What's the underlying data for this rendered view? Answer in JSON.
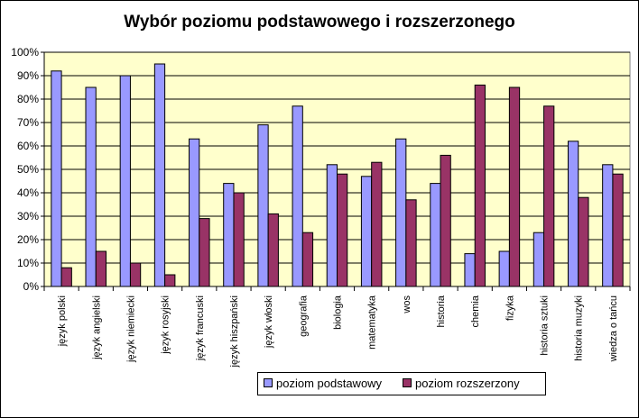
{
  "chart_data": {
    "type": "bar",
    "title": "Wybór poziomu podstawowego i rozszerzonego",
    "xlabel": "",
    "ylabel": "",
    "ylim": [
      0,
      100
    ],
    "y_ticks": [
      "0%",
      "10%",
      "20%",
      "30%",
      "40%",
      "50%",
      "60%",
      "70%",
      "80%",
      "90%",
      "100%"
    ],
    "grid": true,
    "legend_position": "bottom",
    "categories": [
      "język polski",
      "język angielski",
      "język niemiecki",
      "język rosyjski",
      "język francuski",
      "język hiszpański",
      "język włoski",
      "geografia",
      "biologia",
      "matematyka",
      "wos",
      "historia",
      "chemia",
      "fizyka",
      "historia sztuki",
      "historia muzyki",
      "wiedza o tańcu"
    ],
    "series": [
      {
        "name": "poziom podstawowy",
        "color": "#9999ff",
        "values": [
          92,
          85,
          90,
          95,
          63,
          44,
          69,
          77,
          52,
          47,
          63,
          44,
          14,
          15,
          23,
          62,
          52
        ]
      },
      {
        "name": "poziom rozszerzony",
        "color": "#993366",
        "values": [
          8,
          15,
          10,
          5,
          29,
          40,
          31,
          23,
          48,
          53,
          37,
          56,
          86,
          85,
          77,
          38,
          48
        ]
      }
    ],
    "plot_background": "#ffffcc"
  }
}
